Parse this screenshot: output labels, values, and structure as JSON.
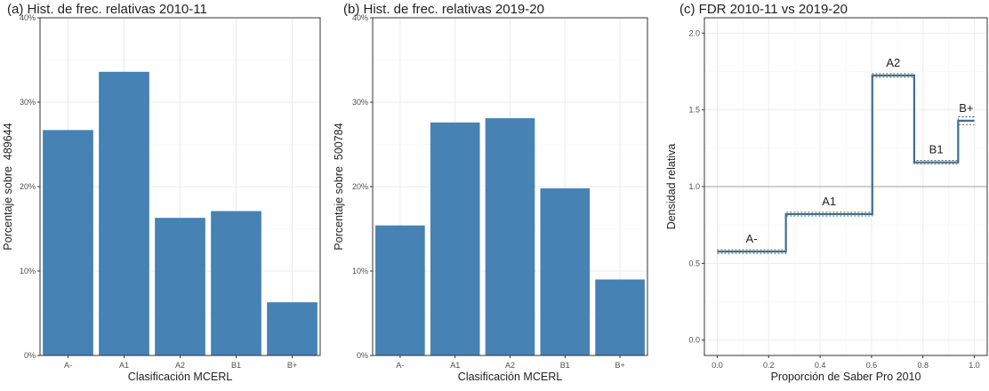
{
  "chart_data": [
    {
      "type": "bar",
      "title": "(a) Hist. de frec. relativas 2010-11",
      "xlabel": "Clasificación MCERL",
      "ylabel": "Porcentaje sobre  489644",
      "categories": [
        "A-",
        "A1",
        "A2",
        "B1",
        "B+"
      ],
      "values": [
        26.7,
        33.6,
        16.3,
        17.1,
        6.3
      ],
      "ylim": [
        0,
        40
      ],
      "yticks": [
        "0%",
        "10%",
        "20%",
        "30%",
        "40%"
      ],
      "color": "#4682b4",
      "grid": true
    },
    {
      "type": "bar",
      "title": "(b) Hist. de frec. relativas 2019-20",
      "xlabel": "Clasificación MCERL",
      "ylabel": "Porcentaje sobre  500784",
      "categories": [
        "A-",
        "A1",
        "A2",
        "B1",
        "B+"
      ],
      "values": [
        15.4,
        27.6,
        28.1,
        19.8,
        9.0
      ],
      "ylim": [
        0,
        40
      ],
      "yticks": [
        "0%",
        "10%",
        "20%",
        "30%",
        "40%"
      ],
      "color": "#4682b4",
      "grid": true
    },
    {
      "type": "line",
      "title": "(c) FDR 2010-11 vs 2019-20",
      "xlabel": "Proporción de Saber Pro 2010",
      "ylabel": "Densidad relativa",
      "xlim": [
        0,
        1
      ],
      "ylim": [
        0,
        2.0
      ],
      "xticks": [
        "0.0",
        "0.2",
        "0.4",
        "0.6",
        "0.8",
        "1.0"
      ],
      "yticks": [
        "0.0",
        "0.5",
        "1.0",
        "1.5",
        "2.0"
      ],
      "reference_line": 1.0,
      "segments": [
        {
          "label": "A-",
          "x0": 0.0,
          "x1": 0.267,
          "y": 0.577
        },
        {
          "label": "A1",
          "x0": 0.267,
          "x1": 0.603,
          "y": 0.821
        },
        {
          "label": "A2",
          "x0": 0.603,
          "x1": 0.766,
          "y": 1.724
        },
        {
          "label": "B1",
          "x0": 0.766,
          "x1": 0.937,
          "y": 1.158
        },
        {
          "label": "B+",
          "x0": 0.937,
          "x1": 1.0,
          "y": 1.429
        }
      ],
      "color": "#3d6f8e",
      "grid": true
    }
  ]
}
